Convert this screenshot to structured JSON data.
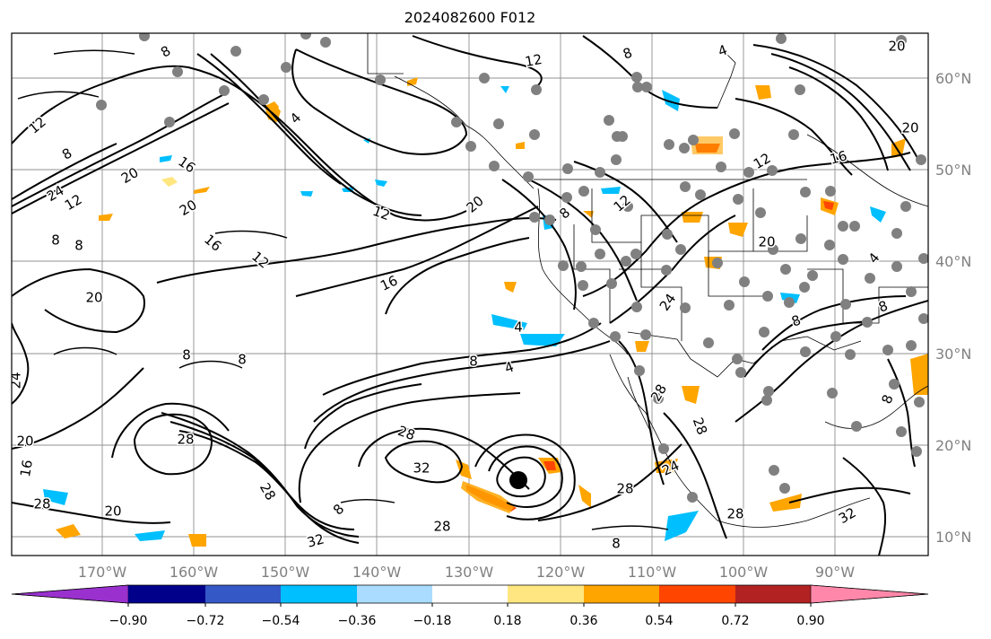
{
  "title": "2024082600 F012",
  "map": {
    "lat_labels": [
      "60°N",
      "50°N",
      "40°N",
      "30°N",
      "20°N",
      "10°N"
    ],
    "lon_labels": [
      "170°W",
      "160°W",
      "150°W",
      "140°W",
      "130°W",
      "120°W",
      "110°W",
      "100°W",
      "90°W"
    ],
    "contour_levels_shown": [
      "4",
      "8",
      "12",
      "16",
      "20",
      "24",
      "28",
      "32"
    ],
    "contour_labels": [
      {
        "text": "8"
      },
      {
        "text": "12"
      },
      {
        "text": "4"
      },
      {
        "text": "12"
      },
      {
        "text": "8"
      },
      {
        "text": "16"
      },
      {
        "text": "20"
      },
      {
        "text": "24"
      },
      {
        "text": "12"
      },
      {
        "text": "20"
      },
      {
        "text": "8"
      },
      {
        "text": "8"
      },
      {
        "text": "16"
      },
      {
        "text": "12"
      },
      {
        "text": "12"
      },
      {
        "text": "20"
      },
      {
        "text": "16"
      },
      {
        "text": "12"
      },
      {
        "text": "8"
      },
      {
        "text": "20"
      },
      {
        "text": "8"
      },
      {
        "text": "8"
      },
      {
        "text": "24"
      },
      {
        "text": "20"
      },
      {
        "text": "16"
      },
      {
        "text": "28"
      },
      {
        "text": "28"
      },
      {
        "text": "20"
      },
      {
        "text": "28"
      },
      {
        "text": "8"
      },
      {
        "text": "32"
      },
      {
        "text": "28"
      },
      {
        "text": "8"
      },
      {
        "text": "28"
      },
      {
        "text": "32"
      },
      {
        "text": "28"
      },
      {
        "text": "4"
      },
      {
        "text": "12"
      },
      {
        "text": "24"
      },
      {
        "text": "4"
      },
      {
        "text": "28"
      },
      {
        "text": "24"
      },
      {
        "text": "28"
      },
      {
        "text": "28"
      },
      {
        "text": "8"
      },
      {
        "text": "8"
      },
      {
        "text": "4"
      },
      {
        "text": "8"
      },
      {
        "text": "16"
      },
      {
        "text": "20"
      },
      {
        "text": "20"
      },
      {
        "text": "4"
      },
      {
        "text": "8"
      },
      {
        "text": "8"
      },
      {
        "text": "32"
      },
      {
        "text": "20"
      }
    ]
  },
  "colorbar": {
    "tick_labels": [
      "−0.90",
      "−0.72",
      "−0.54",
      "−0.36",
      "−0.18",
      "0.18",
      "0.36",
      "0.54",
      "0.72",
      "0.90"
    ],
    "colors": [
      "#9a31cf",
      "#00008b",
      "#3558c7",
      "#00bfff",
      "#aadcff",
      "#ffffff",
      "#ffe680",
      "#ffa500",
      "#ff4500",
      "#b22222",
      "#ff88aa"
    ]
  },
  "colors": {
    "neg_light": "#aadcff",
    "neg_mid": "#00bfff",
    "pos_light": "#ffe680",
    "pos_mid": "#ffa500",
    "pos_high": "#ff4500",
    "pos_max": "#b22222",
    "station": "#808080",
    "grid": "#909090"
  }
}
